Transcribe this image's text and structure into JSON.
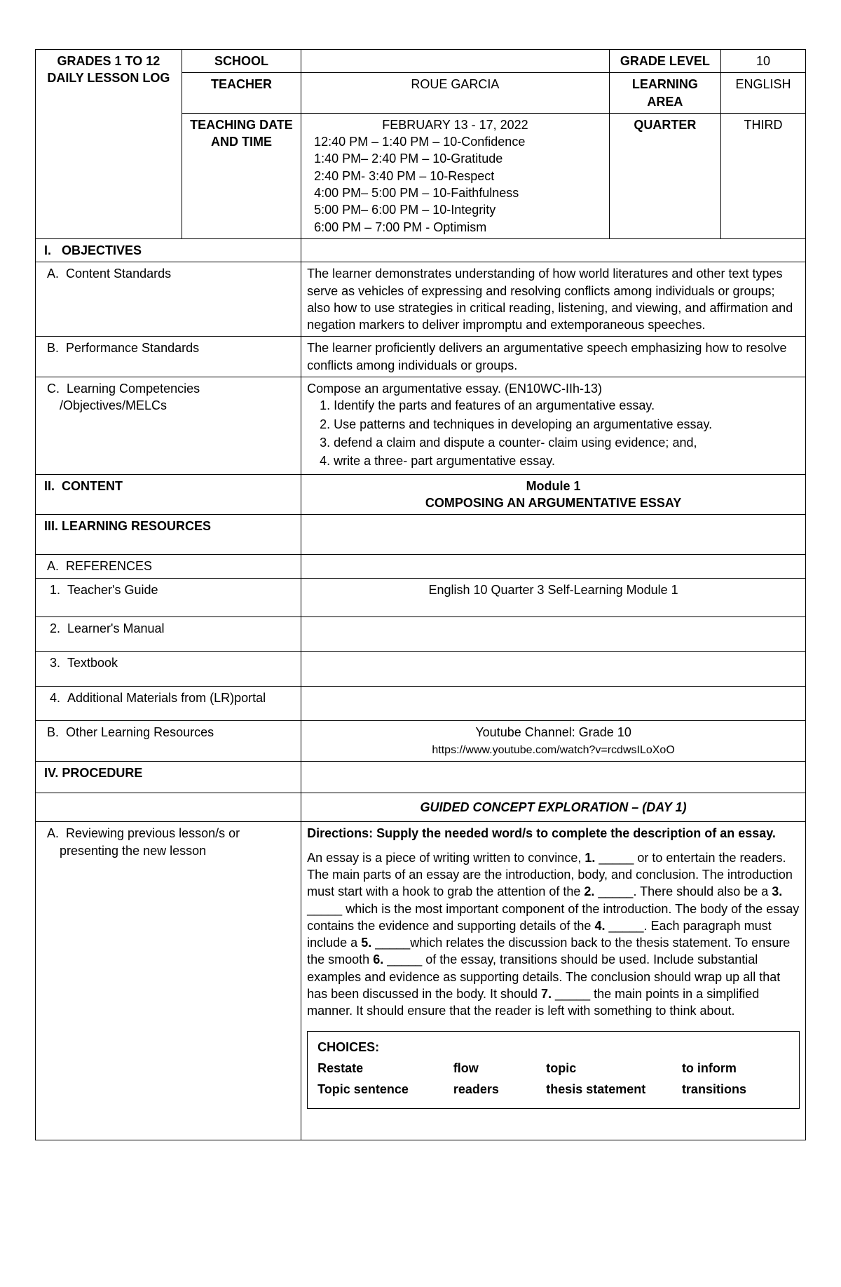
{
  "header": {
    "logTitle": "GRADES 1 TO 12 DAILY LESSON LOG",
    "schoolLabel": "SCHOOL",
    "schoolValue": "",
    "gradeLevelLabel": "GRADE LEVEL",
    "gradeLevelValue": "10",
    "teacherLabel": "TEACHER",
    "teacherValue": "ROUE GARCIA",
    "learnAreaLabel": "LEARNING AREA",
    "learnAreaValue": "ENGLISH",
    "dateTimeLabel": "TEACHING DATE AND TIME",
    "dateRange": "FEBRUARY 13 - 17, 2022",
    "schedule": [
      "12:40 PM – 1:40 PM – 10-Confidence",
      "1:40 PM– 2:40 PM – 10-Gratitude",
      "2:40 PM- 3:40 PM – 10-Respect",
      "4:00 PM– 5:00 PM – 10-Faithfulness",
      "5:00 PM– 6:00 PM – 10-Integrity",
      "6:00 PM – 7:00 PM - Optimism"
    ],
    "quarterLabel": "QUARTER",
    "quarterValue": "THIRD"
  },
  "sections": {
    "objectives": "I.   OBJECTIVES",
    "contentStd": {
      "label": "A.  Content Standards",
      "text": "The learner demonstrates understanding of how world literatures and other text types serve as vehicles of expressing and resolving conflicts among individuals or groups; also how to use strategies in critical reading, listening, and viewing, and affirmation and negation markers to deliver impromptu and extemporaneous speeches."
    },
    "perfStd": {
      "label": "B.  Performance Standards",
      "text": "The learner proficiently delivers an argumentative speech emphasizing how to resolve conflicts among individuals or groups."
    },
    "learnComp": {
      "label": "C.  Learning Competencies /Objectives/MELCs",
      "intro": "Compose an argumentative essay. (EN10WC-IIh-13)",
      "items": [
        "1. Identify the parts and features of an argumentative essay.",
        "2. Use patterns and techniques in developing an argumentative essay.",
        "3. defend a claim and dispute a counter- claim using evidence; and,",
        "4. write a three- part argumentative essay."
      ]
    },
    "content": {
      "label": "II.  CONTENT",
      "line1": "Module 1",
      "line2": "COMPOSING AN ARGUMENTATIVE ESSAY"
    },
    "learnRes": "III. LEARNING RESOURCES",
    "refs": "A.  REFERENCES",
    "teachGuide": {
      "label": "1.  Teacher's Guide",
      "text": "English 10 Quarter 3 Self-Learning Module 1"
    },
    "learnManual": "2.  Learner's Manual",
    "textbook": "3.  Textbook",
    "addMat": "4.  Additional Materials from (LR)portal",
    "otherRes": {
      "label": "B.  Other Learning Resources",
      "line1": "Youtube Channel: Grade 10",
      "line2": "https://www.youtube.com/watch?v=rcdwsILoXoO"
    },
    "procedure": "IV. PROCEDURE",
    "guided": "GUIDED CONCEPT EXPLORATION – (DAY 1)",
    "reviewing": {
      "label": "A.  Reviewing previous lesson/s or presenting the new lesson",
      "directions": "Directions: Supply the needed word/s to complete the description of an essay.",
      "essayText": "An essay is a piece of writing written to convince, 1. _____ or to entertain the readers. The main parts of an essay are the introduction, body, and conclusion. The introduction must start with a hook to grab the attention of the 2. _____. There should also be a 3. _____ which is the most important component of the introduction. The body of the essay contains the evidence and supporting details of the 4. _____. Each paragraph must include a 5. _____which relates the discussion back to the thesis statement. To ensure the smooth 6. _____ of the essay, transitions should be used. Include substantial examples and evidence as supporting details. The conclusion should wrap up all that has been discussed in the body. It should 7. _____ the main points in a simplified manner. It should ensure that the reader is left with something to think about.",
      "choicesLabel": "CHOICES:",
      "choices": [
        "Restate",
        "flow",
        "topic",
        "to inform",
        "Topic sentence",
        "readers",
        "thesis statement",
        "transitions"
      ]
    }
  }
}
